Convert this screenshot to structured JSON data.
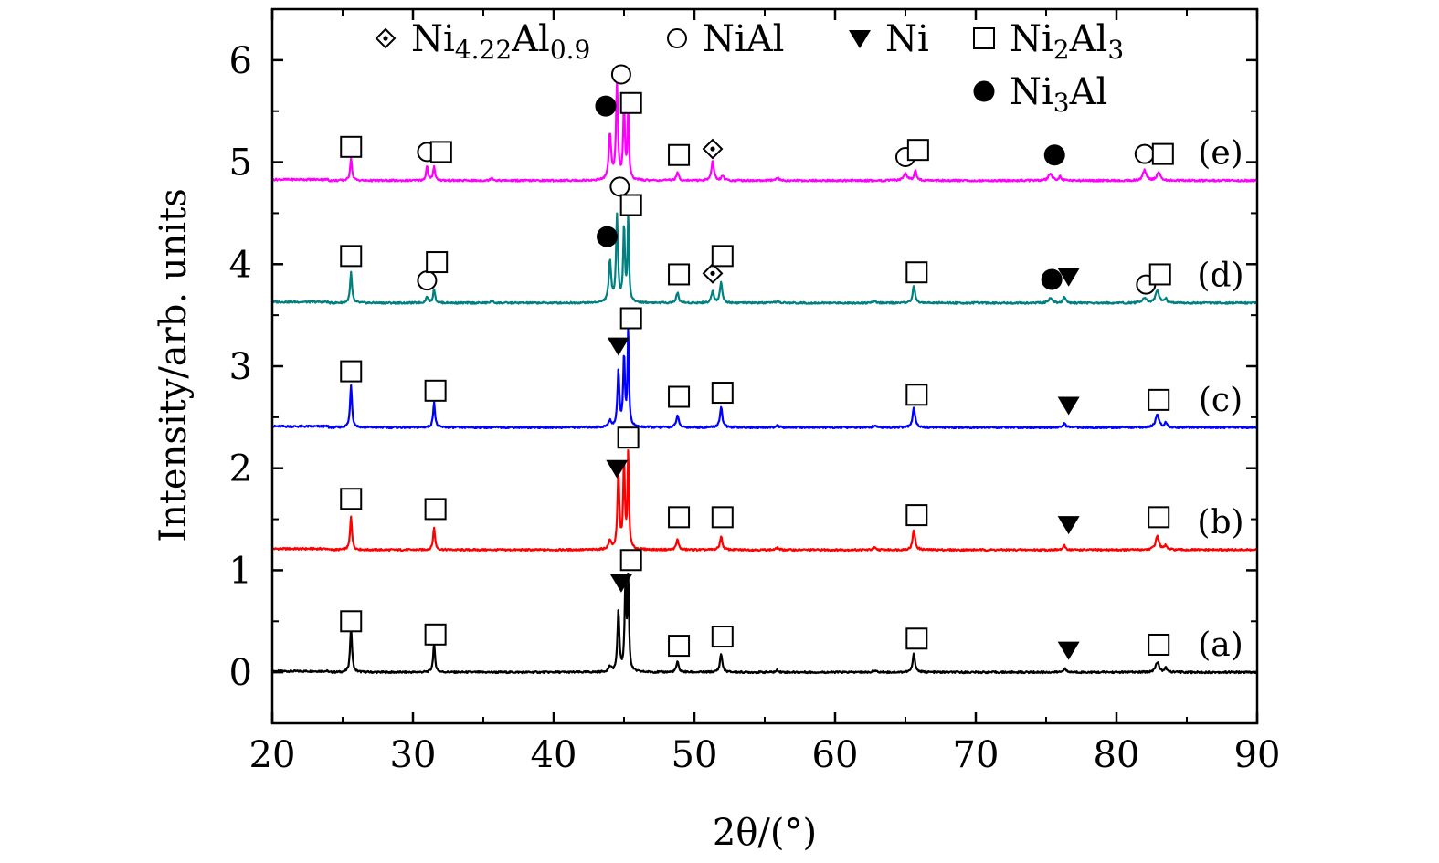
{
  "chart_data": {
    "type": "line",
    "xlabel": "2θ/(°)",
    "ylabel": "Intensity/arb. units",
    "xlim": [
      20,
      90
    ],
    "ylim": [
      -0.5,
      6.5
    ],
    "xticks": [
      "20",
      "30",
      "40",
      "50",
      "60",
      "70",
      "80",
      "90"
    ],
    "yticks": [
      "0",
      "1",
      "2",
      "3",
      "4",
      "5",
      "6"
    ],
    "grid": false,
    "legend_position": "top",
    "legend": [
      {
        "symbol": "diamond-dot",
        "name": "Ni4.22Al0.9",
        "base": "Ni",
        "sub1": "4.22",
        "mid": "Al",
        "sub2": "0.9"
      },
      {
        "symbol": "open-circle",
        "name": "NiAl",
        "base": "NiAl",
        "sub1": "",
        "mid": "",
        "sub2": ""
      },
      {
        "symbol": "down-triangle",
        "name": "Ni",
        "base": "Ni",
        "sub1": "",
        "mid": "",
        "sub2": ""
      },
      {
        "symbol": "open-square",
        "name": "Ni2Al3",
        "base": "Ni",
        "sub1": "2",
        "mid": "Al",
        "sub2": "3"
      },
      {
        "symbol": "filled-circle",
        "name": "Ni3Al",
        "base": "Ni",
        "sub1": "3",
        "mid": "Al",
        "sub2": ""
      }
    ],
    "series": [
      {
        "label": "(a)",
        "color": "#000000",
        "baseline": 0.0,
        "peaks": [
          [
            25.6,
            0.45,
            0.08
          ],
          [
            31.5,
            0.28,
            0.08
          ],
          [
            44.0,
            0.05,
            0.12
          ],
          [
            44.6,
            0.6,
            0.08
          ],
          [
            45.1,
            0.85,
            0.07
          ],
          [
            45.3,
            0.9,
            0.06
          ],
          [
            48.8,
            0.1,
            0.1
          ],
          [
            51.9,
            0.18,
            0.1
          ],
          [
            55.9,
            0.02,
            0.1
          ],
          [
            62.8,
            0.02,
            0.1
          ],
          [
            65.6,
            0.18,
            0.1
          ],
          [
            76.3,
            0.04,
            0.1
          ],
          [
            82.9,
            0.1,
            0.15
          ],
          [
            83.5,
            0.04,
            0.1
          ]
        ],
        "markers": [
          {
            "x": 25.6,
            "y": 0.5,
            "symbol": "open-square"
          },
          {
            "x": 31.6,
            "y": 0.37,
            "symbol": "open-square"
          },
          {
            "x": 44.8,
            "y": 0.88,
            "symbol": "down-triangle"
          },
          {
            "x": 45.5,
            "y": 1.1,
            "symbol": "open-square"
          },
          {
            "x": 48.9,
            "y": 0.26,
            "symbol": "open-square"
          },
          {
            "x": 52.0,
            "y": 0.35,
            "symbol": "open-square"
          },
          {
            "x": 65.8,
            "y": 0.33,
            "symbol": "open-square"
          },
          {
            "x": 76.6,
            "y": 0.22,
            "symbol": "down-triangle"
          },
          {
            "x": 83.0,
            "y": 0.27,
            "symbol": "open-square"
          }
        ]
      },
      {
        "label": "(b)",
        "color": "#ff0000",
        "baseline": 1.2,
        "peaks": [
          [
            25.6,
            0.33,
            0.08
          ],
          [
            31.5,
            0.22,
            0.08
          ],
          [
            44.0,
            0.08,
            0.12
          ],
          [
            44.6,
            0.75,
            0.08
          ],
          [
            45.0,
            0.85,
            0.07
          ],
          [
            45.3,
            0.95,
            0.06
          ],
          [
            48.8,
            0.1,
            0.1
          ],
          [
            51.9,
            0.13,
            0.1
          ],
          [
            55.9,
            0.02,
            0.1
          ],
          [
            62.8,
            0.02,
            0.1
          ],
          [
            65.6,
            0.2,
            0.1
          ],
          [
            76.3,
            0.04,
            0.1
          ],
          [
            82.9,
            0.13,
            0.15
          ],
          [
            83.5,
            0.04,
            0.1
          ]
        ],
        "markers": [
          {
            "x": 25.6,
            "y": 1.7,
            "symbol": "open-square"
          },
          {
            "x": 31.6,
            "y": 1.6,
            "symbol": "open-square"
          },
          {
            "x": 44.5,
            "y": 2.0,
            "symbol": "down-triangle"
          },
          {
            "x": 45.3,
            "y": 2.3,
            "symbol": "open-square"
          },
          {
            "x": 48.9,
            "y": 1.52,
            "symbol": "open-square"
          },
          {
            "x": 52.0,
            "y": 1.52,
            "symbol": "open-square"
          },
          {
            "x": 65.8,
            "y": 1.54,
            "symbol": "open-square"
          },
          {
            "x": 76.6,
            "y": 1.45,
            "symbol": "down-triangle"
          },
          {
            "x": 83.0,
            "y": 1.52,
            "symbol": "open-square"
          }
        ]
      },
      {
        "label": "(c)",
        "color": "#0000ff",
        "baseline": 2.4,
        "peaks": [
          [
            25.6,
            0.42,
            0.08
          ],
          [
            31.5,
            0.25,
            0.08
          ],
          [
            44.0,
            0.06,
            0.12
          ],
          [
            44.6,
            0.55,
            0.08
          ],
          [
            45.0,
            0.7,
            0.07
          ],
          [
            45.3,
            0.95,
            0.06
          ],
          [
            48.8,
            0.12,
            0.1
          ],
          [
            51.9,
            0.2,
            0.1
          ],
          [
            55.9,
            0.02,
            0.1
          ],
          [
            62.8,
            0.02,
            0.1
          ],
          [
            65.6,
            0.2,
            0.1
          ],
          [
            76.3,
            0.04,
            0.1
          ],
          [
            82.9,
            0.13,
            0.15
          ],
          [
            83.5,
            0.04,
            0.1
          ]
        ],
        "markers": [
          {
            "x": 25.6,
            "y": 2.95,
            "symbol": "open-square"
          },
          {
            "x": 31.6,
            "y": 2.76,
            "symbol": "open-square"
          },
          {
            "x": 44.6,
            "y": 3.2,
            "symbol": "down-triangle"
          },
          {
            "x": 45.5,
            "y": 3.47,
            "symbol": "open-square"
          },
          {
            "x": 48.9,
            "y": 2.7,
            "symbol": "open-square"
          },
          {
            "x": 52.0,
            "y": 2.74,
            "symbol": "open-square"
          },
          {
            "x": 65.8,
            "y": 2.72,
            "symbol": "open-square"
          },
          {
            "x": 76.6,
            "y": 2.62,
            "symbol": "down-triangle"
          },
          {
            "x": 83.0,
            "y": 2.67,
            "symbol": "open-square"
          }
        ]
      },
      {
        "label": "(d)",
        "color": "#008080",
        "baseline": 3.62,
        "peaks": [
          [
            25.6,
            0.3,
            0.08
          ],
          [
            31.0,
            0.06,
            0.1
          ],
          [
            31.5,
            0.14,
            0.08
          ],
          [
            35.6,
            0.02,
            0.1
          ],
          [
            44.0,
            0.4,
            0.1
          ],
          [
            44.5,
            0.85,
            0.08
          ],
          [
            45.0,
            0.75,
            0.07
          ],
          [
            45.3,
            0.85,
            0.06
          ],
          [
            48.8,
            0.1,
            0.1
          ],
          [
            51.3,
            0.12,
            0.1
          ],
          [
            51.9,
            0.2,
            0.1
          ],
          [
            55.9,
            0.02,
            0.1
          ],
          [
            62.8,
            0.02,
            0.1
          ],
          [
            65.6,
            0.17,
            0.1
          ],
          [
            75.3,
            0.05,
            0.15
          ],
          [
            76.3,
            0.06,
            0.1
          ],
          [
            82.0,
            0.05,
            0.15
          ],
          [
            82.9,
            0.12,
            0.15
          ],
          [
            83.5,
            0.04,
            0.1
          ]
        ],
        "markers": [
          {
            "x": 25.6,
            "y": 4.08,
            "symbol": "open-square"
          },
          {
            "x": 31.0,
            "y": 3.84,
            "symbol": "open-circle"
          },
          {
            "x": 31.7,
            "y": 4.02,
            "symbol": "open-square"
          },
          {
            "x": 43.8,
            "y": 4.27,
            "symbol": "filled-circle"
          },
          {
            "x": 44.7,
            "y": 4.76,
            "symbol": "open-circle"
          },
          {
            "x": 45.5,
            "y": 4.58,
            "symbol": "open-square"
          },
          {
            "x": 48.9,
            "y": 3.9,
            "symbol": "open-square"
          },
          {
            "x": 51.3,
            "y": 3.91,
            "symbol": "diamond-dot"
          },
          {
            "x": 52.0,
            "y": 4.08,
            "symbol": "open-square"
          },
          {
            "x": 65.8,
            "y": 3.92,
            "symbol": "open-square"
          },
          {
            "x": 75.4,
            "y": 3.85,
            "symbol": "filled-circle"
          },
          {
            "x": 76.6,
            "y": 3.88,
            "symbol": "down-triangle"
          },
          {
            "x": 82.1,
            "y": 3.8,
            "symbol": "open-circle"
          },
          {
            "x": 83.1,
            "y": 3.9,
            "symbol": "open-square"
          }
        ]
      },
      {
        "label": "(e)",
        "color": "#ff00ff",
        "baseline": 4.82,
        "peaks": [
          [
            25.6,
            0.22,
            0.08
          ],
          [
            31.0,
            0.14,
            0.08
          ],
          [
            31.5,
            0.14,
            0.08
          ],
          [
            35.6,
            0.03,
            0.1
          ],
          [
            44.0,
            0.45,
            0.1
          ],
          [
            44.5,
            0.95,
            0.08
          ],
          [
            45.0,
            0.75,
            0.07
          ],
          [
            45.3,
            0.7,
            0.06
          ],
          [
            48.8,
            0.08,
            0.1
          ],
          [
            51.3,
            0.2,
            0.1
          ],
          [
            52.0,
            0.05,
            0.1
          ],
          [
            55.9,
            0.03,
            0.1
          ],
          [
            65.0,
            0.07,
            0.15
          ],
          [
            65.7,
            0.1,
            0.1
          ],
          [
            75.3,
            0.07,
            0.15
          ],
          [
            76.0,
            0.04,
            0.1
          ],
          [
            82.0,
            0.1,
            0.15
          ],
          [
            83.0,
            0.08,
            0.15
          ]
        ],
        "markers": [
          {
            "x": 25.6,
            "y": 5.15,
            "symbol": "open-square"
          },
          {
            "x": 31.0,
            "y": 5.1,
            "symbol": "open-circle"
          },
          {
            "x": 32.0,
            "y": 5.1,
            "symbol": "open-square"
          },
          {
            "x": 43.7,
            "y": 5.55,
            "symbol": "filled-circle"
          },
          {
            "x": 44.8,
            "y": 5.86,
            "symbol": "open-circle"
          },
          {
            "x": 45.5,
            "y": 5.58,
            "symbol": "open-square"
          },
          {
            "x": 48.9,
            "y": 5.07,
            "symbol": "open-square"
          },
          {
            "x": 51.3,
            "y": 5.13,
            "symbol": "diamond-dot"
          },
          {
            "x": 65.0,
            "y": 5.05,
            "symbol": "open-circle"
          },
          {
            "x": 65.9,
            "y": 5.12,
            "symbol": "open-square"
          },
          {
            "x": 75.6,
            "y": 5.07,
            "symbol": "filled-circle"
          },
          {
            "x": 82.0,
            "y": 5.08,
            "symbol": "open-circle"
          },
          {
            "x": 83.3,
            "y": 5.08,
            "symbol": "open-square"
          }
        ]
      }
    ]
  }
}
